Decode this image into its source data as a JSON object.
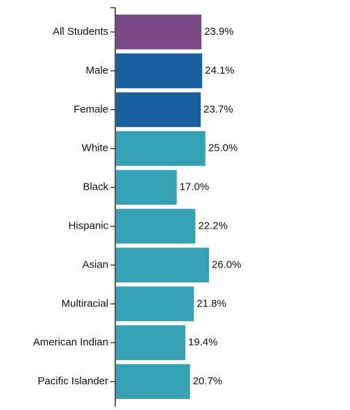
{
  "chart_data": {
    "type": "bar",
    "orientation": "horizontal",
    "categories": [
      "All Students",
      "Male",
      "Female",
      "White",
      "Black",
      "Hispanic",
      "Asian",
      "Multiracial",
      "American Indian",
      "Pacific Islander"
    ],
    "values": [
      23.9,
      24.1,
      23.7,
      25.0,
      17.0,
      22.2,
      26.0,
      21.8,
      19.4,
      20.7
    ],
    "value_labels": [
      "23.9%",
      "24.1%",
      "23.7%",
      "25.0%",
      "17.0%",
      "22.2%",
      "26.0%",
      "21.8%",
      "19.4%",
      "20.7%"
    ],
    "bar_groups": [
      "overall",
      "gender",
      "gender",
      "race",
      "race",
      "race",
      "race",
      "race",
      "race",
      "race"
    ],
    "title": "",
    "xlabel": "",
    "ylabel": "",
    "xlim": [
      0,
      26.0
    ],
    "grid": false,
    "legend": "none"
  },
  "colors": {
    "overall": "#7b4a86",
    "gender": "#1a5fa0",
    "race": "#36a0b4",
    "axis": "#222222",
    "text": "#111111"
  }
}
